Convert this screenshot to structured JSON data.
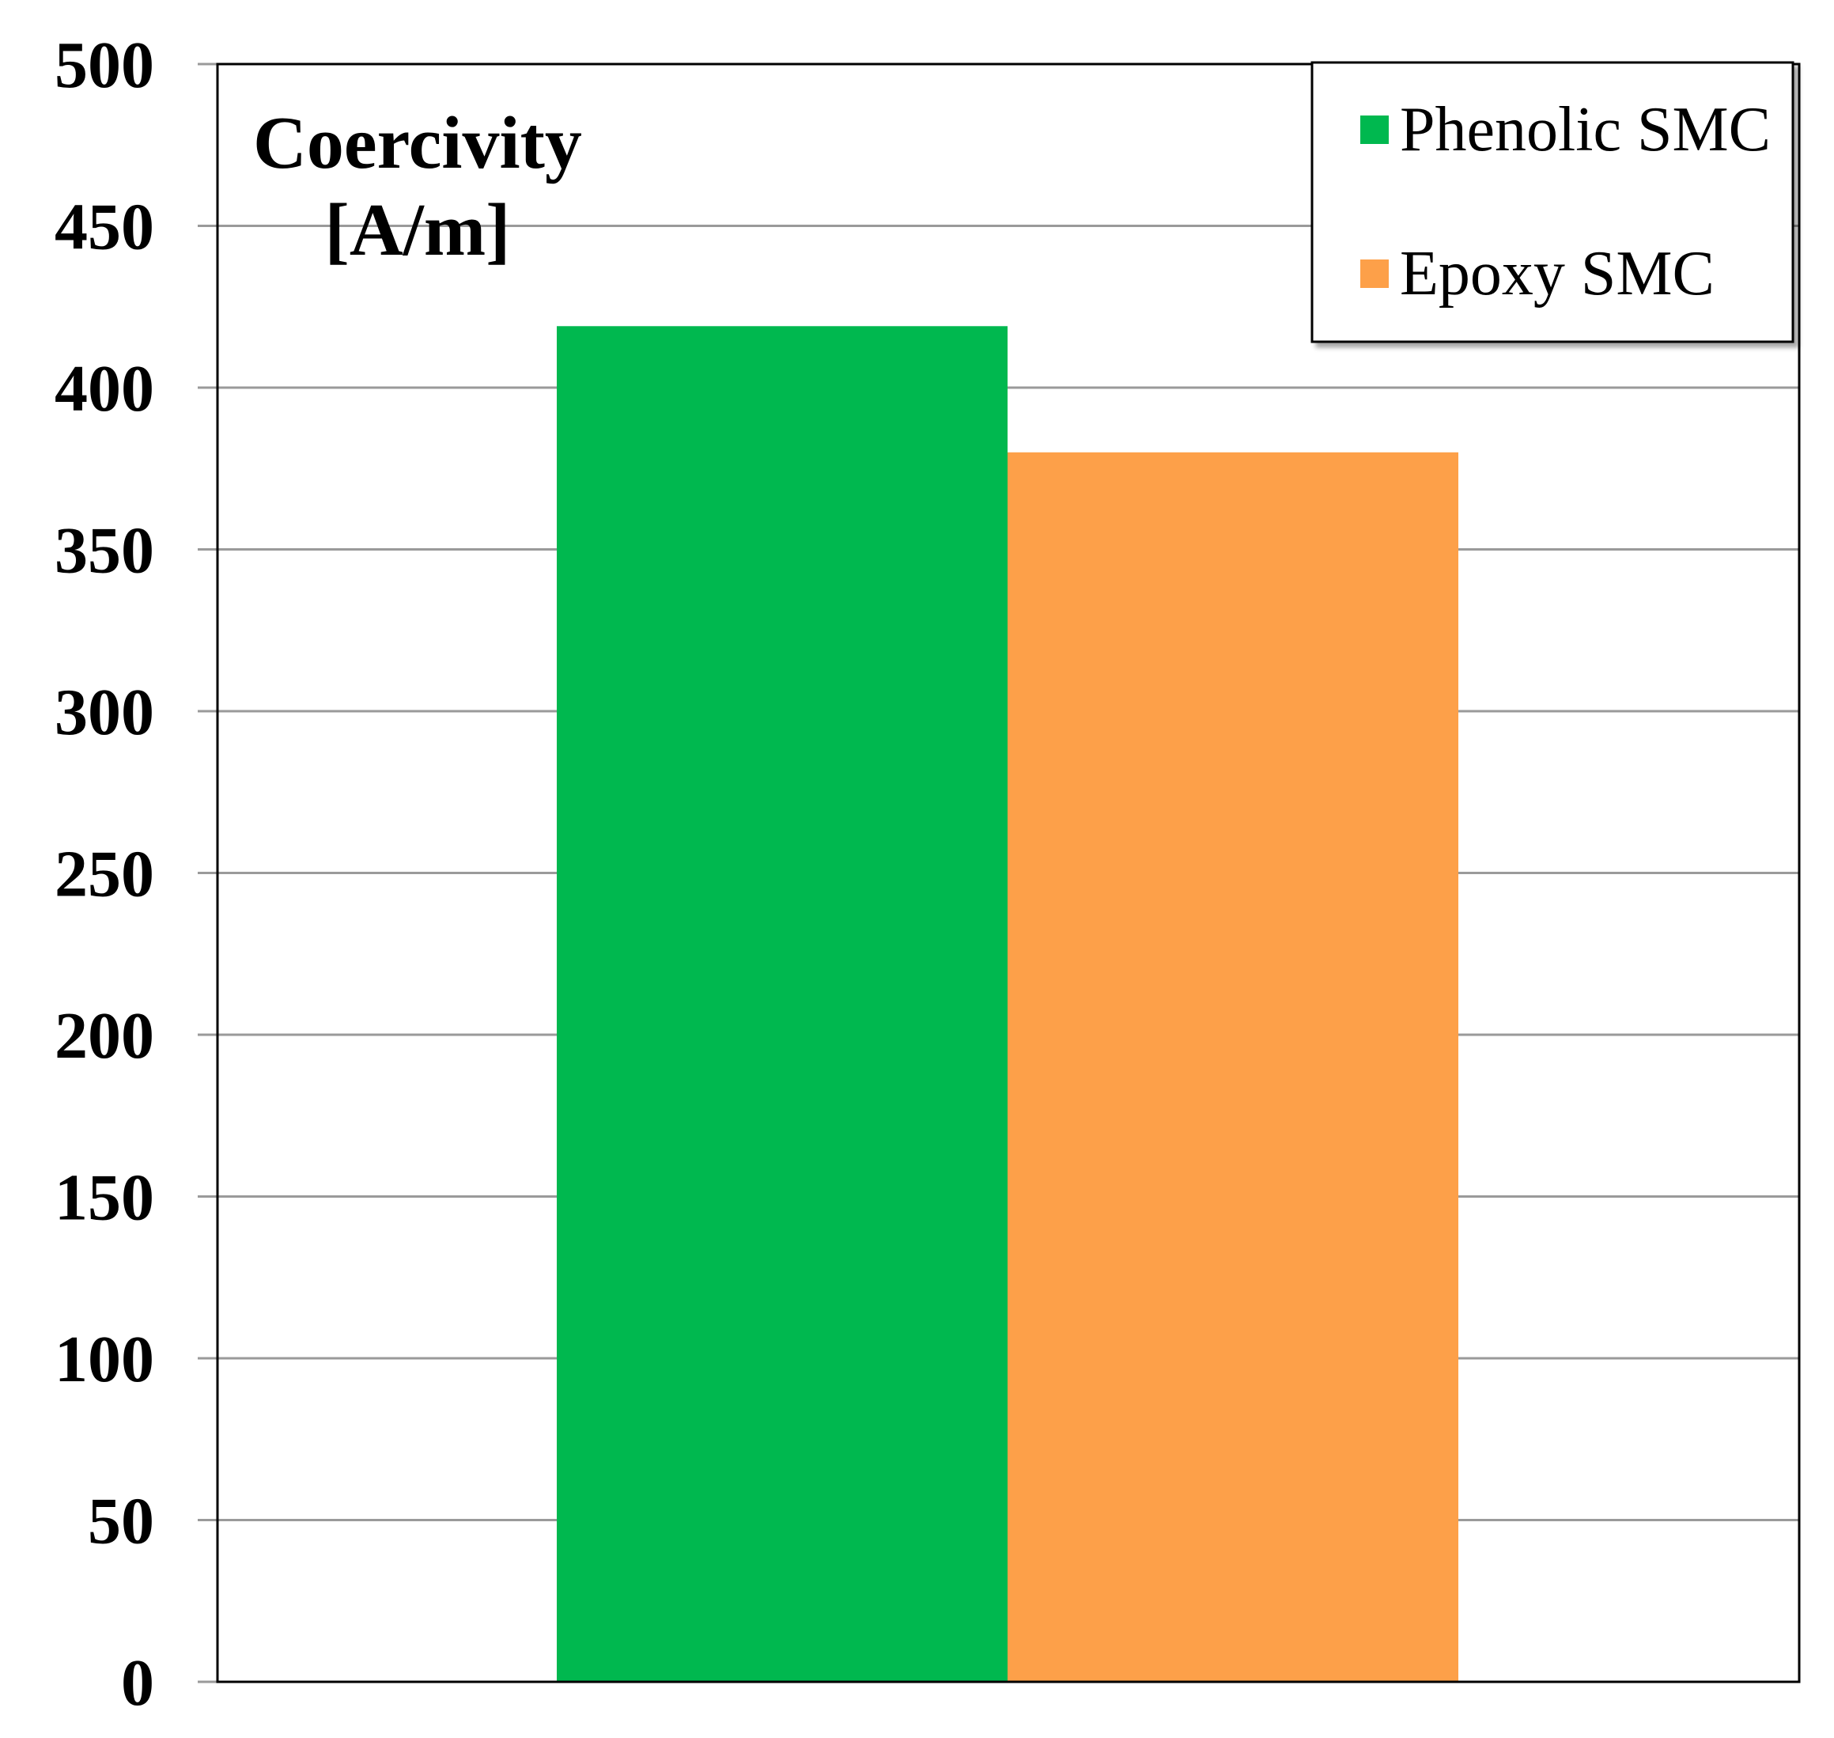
{
  "chart_data": {
    "type": "bar",
    "title_lines": [
      "Coercivity",
      "[A/m]"
    ],
    "categories": [
      ""
    ],
    "series": [
      {
        "name": "Phenolic SMC",
        "values": [
          419
        ],
        "color": "#00B84F"
      },
      {
        "name": "Epoxy SMC",
        "values": [
          380
        ],
        "color": "#FDA049"
      }
    ],
    "ylim": [
      0,
      500
    ],
    "y_ticks": [
      0,
      50,
      100,
      150,
      200,
      250,
      300,
      350,
      400,
      450,
      500
    ],
    "xlabel": "",
    "ylabel": "",
    "grid": true,
    "legend_position": "top-right"
  }
}
